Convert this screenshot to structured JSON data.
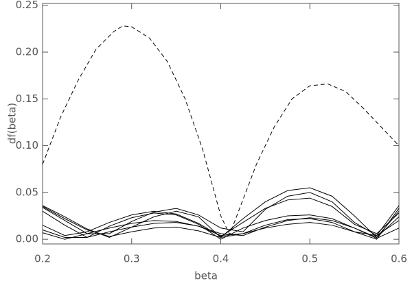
{
  "chart_data": {
    "type": "line",
    "xlabel": "beta",
    "ylabel": "df(beta)",
    "x": [
      0.2,
      0.225,
      0.25,
      0.275,
      0.3,
      0.325,
      0.35,
      0.375,
      0.4,
      0.425,
      0.45,
      0.475,
      0.5,
      0.525,
      0.55,
      0.575,
      0.6
    ],
    "series": [
      {
        "color": "#000000",
        "dashed": true,
        "x": [
          0.2,
          0.22,
          0.24,
          0.26,
          0.28,
          0.29,
          0.3,
          0.32,
          0.34,
          0.36,
          0.38,
          0.4,
          0.41,
          0.42,
          0.44,
          0.46,
          0.48,
          0.5,
          0.52,
          0.54,
          0.56,
          0.58,
          0.6
        ],
        "values": [
          0.08,
          0.13,
          0.17,
          0.203,
          0.222,
          0.228,
          0.227,
          0.215,
          0.19,
          0.15,
          0.095,
          0.025,
          0.005,
          0.03,
          0.08,
          0.12,
          0.15,
          0.164,
          0.166,
          0.158,
          0.14,
          0.12,
          0.1
        ]
      },
      {
        "color": "#000000",
        "values": [
          0.036,
          0.024,
          0.011,
          0.002,
          0.013,
          0.024,
          0.03,
          0.024,
          0.002,
          0.022,
          0.04,
          0.052,
          0.055,
          0.046,
          0.025,
          0.002,
          0.03
        ]
      },
      {
        "color": "#000000",
        "values": [
          0.034,
          0.02,
          0.006,
          0.006,
          0.019,
          0.029,
          0.033,
          0.026,
          0.012,
          0.008,
          0.032,
          0.046,
          0.05,
          0.04,
          0.018,
          0.004,
          0.036
        ]
      },
      {
        "color": "#000000",
        "values": [
          0.015,
          0.004,
          0.008,
          0.018,
          0.026,
          0.03,
          0.027,
          0.017,
          0.003,
          0.018,
          0.033,
          0.042,
          0.044,
          0.035,
          0.016,
          0.006,
          0.028
        ]
      },
      {
        "color": "#000000",
        "values": [
          0.01,
          0.002,
          0.002,
          0.008,
          0.013,
          0.017,
          0.018,
          0.014,
          0.006,
          0.004,
          0.013,
          0.02,
          0.023,
          0.02,
          0.012,
          0.001,
          0.012
        ]
      },
      {
        "color": "#000000",
        "values": [
          0.007,
          0.0,
          0.006,
          0.012,
          0.017,
          0.02,
          0.019,
          0.014,
          0.004,
          0.006,
          0.015,
          0.021,
          0.022,
          0.018,
          0.008,
          0.004,
          0.02
        ]
      },
      {
        "color": "#000000",
        "values": [
          0.03,
          0.015,
          0.002,
          0.014,
          0.023,
          0.028,
          0.026,
          0.016,
          0.0,
          0.012,
          0.02,
          0.025,
          0.026,
          0.022,
          0.012,
          0.002,
          0.024
        ]
      },
      {
        "color": "#000000",
        "values": [
          0.035,
          0.022,
          0.01,
          0.003,
          0.008,
          0.012,
          0.013,
          0.009,
          0.002,
          0.006,
          0.012,
          0.016,
          0.018,
          0.015,
          0.008,
          0.0,
          0.033
        ]
      }
    ],
    "xlim": [
      0.2,
      0.6
    ],
    "xticks": [
      0.2,
      0.3,
      0.4,
      0.5,
      0.6
    ],
    "ylim": [
      -0.005,
      0.252
    ],
    "yticks": [
      {
        "value": 0,
        "label": "0.00"
      },
      {
        "value": 0.05,
        "label": "0.05"
      },
      {
        "value": 0.1,
        "label": "0.10"
      },
      {
        "value": 0.15,
        "label": "0.15"
      },
      {
        "value": 0.2,
        "label": "0.20"
      },
      {
        "value": 0.25,
        "label": "0.25"
      }
    ],
    "grid": false
  }
}
